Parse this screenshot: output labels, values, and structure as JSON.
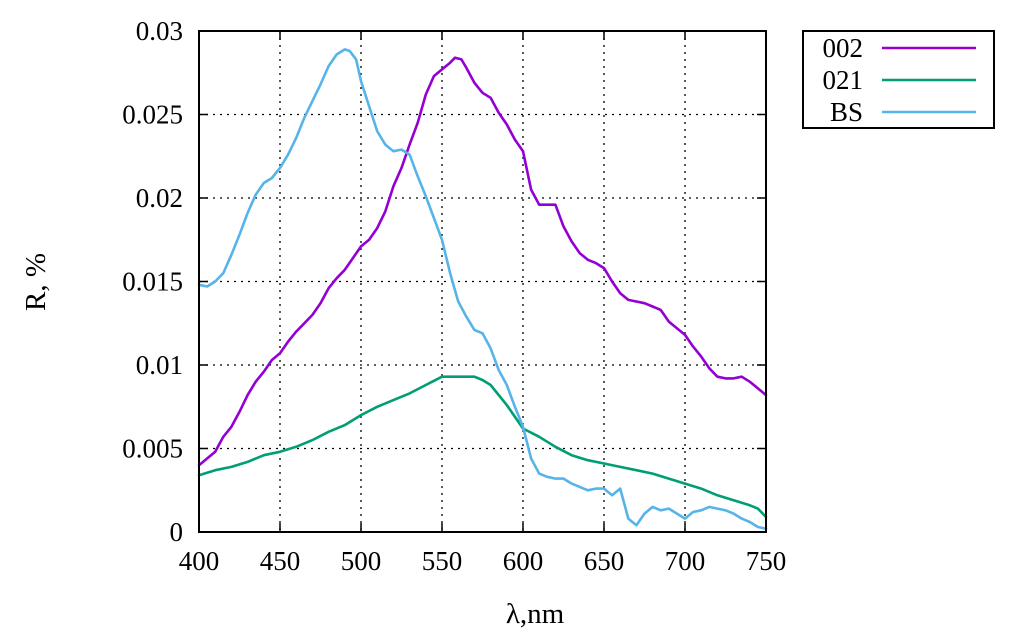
{
  "chart_data": {
    "type": "line",
    "title": "",
    "xlabel": "λ,nm",
    "ylabel": "R, %",
    "xlim": [
      400,
      750
    ],
    "ylim": [
      0,
      0.03
    ],
    "x_ticks": [
      "400",
      "450",
      "500",
      "550",
      "600",
      "650",
      "700",
      "750"
    ],
    "y_ticks": [
      "0",
      "0.005",
      "0.01",
      "0.015",
      "0.02",
      "0.025",
      "0.03"
    ],
    "x_tick_values": [
      400,
      450,
      500,
      550,
      600,
      650,
      700,
      750
    ],
    "y_tick_values": [
      0,
      0.005,
      0.01,
      0.015,
      0.02,
      0.025,
      0.03
    ],
    "grid": true,
    "legend_position": "outside-top-right",
    "series": [
      {
        "name": "002",
        "color": "#9400d3",
        "x": [
          400,
          405,
          410,
          415,
          420,
          425,
          430,
          435,
          440,
          445,
          450,
          455,
          460,
          465,
          470,
          475,
          480,
          485,
          490,
          495,
          500,
          505,
          510,
          515,
          520,
          525,
          530,
          535,
          540,
          545,
          550,
          555,
          558,
          562,
          565,
          570,
          575,
          580,
          585,
          590,
          595,
          600,
          605,
          610,
          615,
          620,
          625,
          630,
          635,
          640,
          645,
          650,
          655,
          660,
          665,
          670,
          675,
          680,
          685,
          690,
          695,
          700,
          705,
          710,
          715,
          720,
          725,
          730,
          735,
          740,
          745,
          750
        ],
        "y": [
          0.004,
          0.0044,
          0.0048,
          0.0057,
          0.0063,
          0.0072,
          0.0082,
          0.009,
          0.0096,
          0.0103,
          0.0107,
          0.0114,
          0.012,
          0.0125,
          0.013,
          0.0137,
          0.0146,
          0.0152,
          0.0157,
          0.0164,
          0.0171,
          0.0175,
          0.0182,
          0.0192,
          0.0207,
          0.0218,
          0.0232,
          0.0245,
          0.0262,
          0.0273,
          0.0277,
          0.0281,
          0.0284,
          0.0283,
          0.0278,
          0.0269,
          0.0263,
          0.026,
          0.0251,
          0.0244,
          0.0235,
          0.0228,
          0.0205,
          0.0196,
          0.0196,
          0.0196,
          0.0183,
          0.0174,
          0.0167,
          0.0163,
          0.0161,
          0.0158,
          0.015,
          0.0143,
          0.0139,
          0.0138,
          0.0137,
          0.0135,
          0.0133,
          0.0126,
          0.0122,
          0.0118,
          0.0111,
          0.0105,
          0.0098,
          0.0093,
          0.0092,
          0.0092,
          0.0093,
          0.009,
          0.0086,
          0.0082
        ]
      },
      {
        "name": "021",
        "color": "#009e73",
        "x": [
          400,
          410,
          420,
          430,
          440,
          450,
          460,
          470,
          480,
          490,
          500,
          510,
          520,
          530,
          540,
          550,
          560,
          565,
          570,
          575,
          580,
          590,
          600,
          610,
          620,
          630,
          640,
          650,
          660,
          670,
          680,
          690,
          700,
          710,
          720,
          730,
          740,
          745,
          750
        ],
        "y": [
          0.0034,
          0.0037,
          0.0039,
          0.0042,
          0.0046,
          0.0048,
          0.0051,
          0.0055,
          0.006,
          0.0064,
          0.007,
          0.0075,
          0.0079,
          0.0083,
          0.0088,
          0.0093,
          0.0093,
          0.0093,
          0.0093,
          0.0091,
          0.0088,
          0.0076,
          0.0062,
          0.0057,
          0.0051,
          0.0046,
          0.0043,
          0.0041,
          0.0039,
          0.0037,
          0.0035,
          0.0032,
          0.0029,
          0.0026,
          0.0022,
          0.0019,
          0.0016,
          0.0014,
          0.0009
        ]
      },
      {
        "name": "BS",
        "color": "#56b4e9",
        "x": [
          400,
          405,
          410,
          415,
          420,
          425,
          430,
          435,
          440,
          445,
          450,
          455,
          460,
          465,
          470,
          475,
          480,
          485,
          490,
          493,
          497,
          500,
          505,
          510,
          515,
          520,
          525,
          530,
          535,
          540,
          545,
          550,
          555,
          560,
          565,
          570,
          575,
          580,
          585,
          590,
          595,
          600,
          605,
          610,
          615,
          620,
          625,
          630,
          635,
          640,
          645,
          650,
          655,
          660,
          665,
          670,
          675,
          680,
          685,
          690,
          695,
          700,
          705,
          710,
          715,
          720,
          725,
          730,
          735,
          740,
          745,
          750
        ],
        "y": [
          0.0148,
          0.0147,
          0.015,
          0.0155,
          0.0166,
          0.0178,
          0.0191,
          0.0202,
          0.0209,
          0.0212,
          0.0218,
          0.0226,
          0.0236,
          0.0248,
          0.0258,
          0.0268,
          0.0279,
          0.0286,
          0.0289,
          0.0288,
          0.0283,
          0.027,
          0.0255,
          0.024,
          0.0232,
          0.0228,
          0.0229,
          0.0226,
          0.0213,
          0.0201,
          0.0188,
          0.0175,
          0.0155,
          0.0138,
          0.0129,
          0.0121,
          0.0119,
          0.011,
          0.0097,
          0.0088,
          0.0075,
          0.0063,
          0.0044,
          0.0035,
          0.0033,
          0.0032,
          0.0032,
          0.0029,
          0.0027,
          0.0025,
          0.0026,
          0.0026,
          0.0022,
          0.0026,
          0.0008,
          0.0004,
          0.0011,
          0.0015,
          0.0013,
          0.0014,
          0.0011,
          0.0008,
          0.0012,
          0.0013,
          0.0015,
          0.0014,
          0.0013,
          0.0011,
          0.0008,
          0.0006,
          0.0003,
          0.0002
        ]
      }
    ]
  }
}
